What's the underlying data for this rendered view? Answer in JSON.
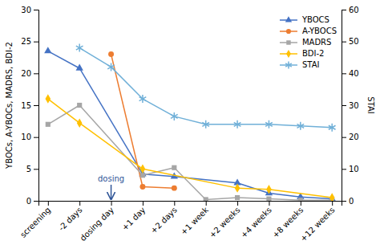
{
  "chart_data": {
    "type": "line",
    "categories": [
      "screening",
      "-2 days",
      "dosing day",
      "+1 day",
      "+2 days",
      "+1 week",
      "+2 weeks",
      "+4 weeks",
      "+8 weeks",
      "+12 weeks"
    ],
    "series": [
      {
        "name": "YBOCS",
        "color": "#4472C4",
        "marker": "triangle",
        "values": [
          23.5,
          20.8,
          null,
          4.2,
          3.8,
          null,
          2.8,
          1.2,
          0.6,
          0.3
        ]
      },
      {
        "name": "A-YBOCS",
        "color": "#ED7D31",
        "marker": "circle",
        "values": [
          null,
          null,
          23.0,
          2.2,
          2.0,
          null,
          null,
          null,
          null,
          null
        ]
      },
      {
        "name": "MADRS",
        "color": "#A6A6A6",
        "marker": "square",
        "values": [
          12.0,
          15.0,
          null,
          4.0,
          5.2,
          0.2,
          0.5,
          0.3,
          0.1,
          0.1
        ]
      },
      {
        "name": "BDI-2",
        "color": "#FFC000",
        "marker": "diamond",
        "values": [
          16.0,
          12.2,
          null,
          5.0,
          null,
          null,
          2.0,
          1.8,
          null,
          0.5
        ]
      },
      {
        "name": "STAI",
        "color": "#70B0D8",
        "marker": "asterisk",
        "axis": "y2",
        "values": [
          null,
          48.0,
          42.0,
          32.0,
          26.5,
          24.0,
          24.0,
          24.0,
          23.5,
          23.0
        ]
      }
    ],
    "ylim": [
      0,
      30
    ],
    "yticks": [
      0,
      5,
      10,
      15,
      20,
      25,
      30
    ],
    "y2lim": [
      0,
      60
    ],
    "y2ticks": [
      0,
      10,
      20,
      30,
      40,
      50,
      60
    ],
    "ylabel": "YBOCs, A-YBOCs, MADRS, BDI-2",
    "y2label": "STAI",
    "annotations": [
      {
        "text": "dosing",
        "x": "dosing day"
      }
    ],
    "legend": "upper right",
    "grid": false
  }
}
